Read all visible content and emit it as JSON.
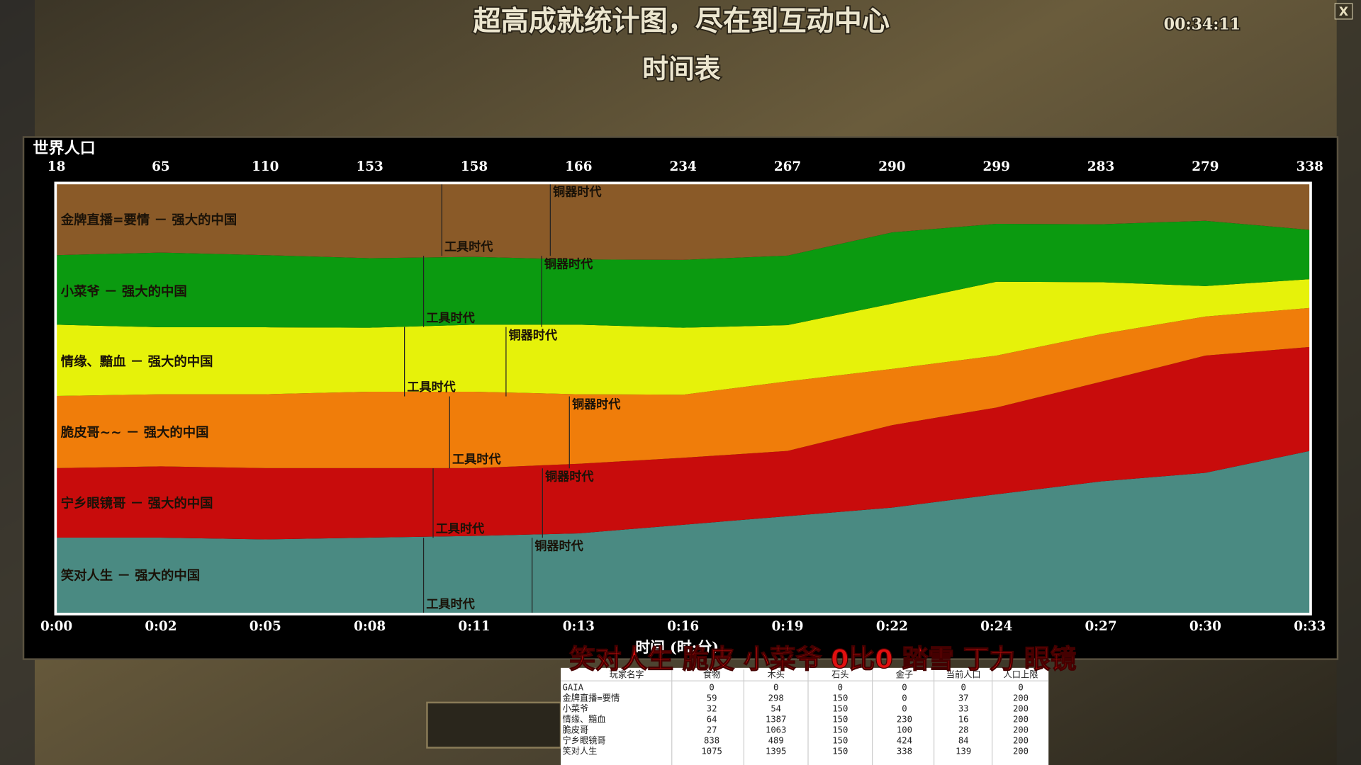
{
  "header": {
    "title": "超高成就统计图，尽在到互动中心",
    "subtitle": "时间表",
    "clock": "00:34:11",
    "close": "X"
  },
  "chart_data": {
    "type": "area",
    "stacked": true,
    "title": "世界人口",
    "xlabel": "时间 (时:分)",
    "categories": [
      "0:00",
      "0:02",
      "0:05",
      "0:08",
      "0:11",
      "0:13",
      "0:16",
      "0:19",
      "0:22",
      "0:24",
      "0:27",
      "0:30",
      "0:33"
    ],
    "population_totals": [
      18,
      65,
      110,
      153,
      158,
      166,
      234,
      267,
      290,
      299,
      283,
      279,
      338
    ],
    "ylim": [
      0,
      100
    ],
    "age_labels": {
      "tool": "工具时代",
      "bronze": "铜器时代"
    },
    "series": [
      {
        "name": "金牌直播=要情 － 强大的中国",
        "color": "#8a5a28",
        "values": [
          16.6,
          16.0,
          16.6,
          17.3,
          17.0,
          17.6,
          17.7,
          16.7,
          11.3,
          9.3,
          9.4,
          8.6,
          10.7
        ]
      },
      {
        "name": "小菜爷 － 强大的中国",
        "color": "#0b9a10",
        "values": [
          16.2,
          17.4,
          16.8,
          16.2,
          15.8,
          15.2,
          15.8,
          16.2,
          16.6,
          13.5,
          13.5,
          15.2,
          11.5
        ]
      },
      {
        "name": "情缘、黯血 － 强大的中国",
        "color": "#e6f20a",
        "values": [
          16.6,
          15.6,
          15.6,
          14.9,
          15.6,
          16.2,
          15.6,
          13.1,
          15.2,
          17.2,
          12.1,
          7.1,
          6.7
        ]
      },
      {
        "name": "脆皮哥~~ － 强大的中国",
        "color": "#f07d0a",
        "values": [
          16.8,
          16.8,
          17.2,
          17.8,
          17.8,
          16.2,
          14.7,
          16.2,
          13.1,
          12.1,
          11.1,
          9.1,
          9.1
        ]
      },
      {
        "name": "宁乡眼镜哥 － 强大的中国",
        "color": "#c80c0c",
        "values": [
          16.2,
          16.6,
          16.6,
          16.2,
          15.8,
          16.2,
          15.6,
          15.2,
          19.2,
          20.2,
          23.2,
          27.3,
          24.2
        ]
      },
      {
        "name": "笑对人生 － 强大的中国",
        "color": "#4a8a82",
        "values": [
          17.6,
          17.6,
          17.2,
          17.6,
          18.0,
          18.6,
          20.6,
          22.6,
          24.6,
          27.7,
          30.7,
          32.7,
          37.8
        ]
      }
    ]
  },
  "overlay": "笑对人生 脆皮 小菜爷 0比0 踏雪 丁力 眼镜",
  "table": {
    "headers": [
      "玩家名字",
      "食物",
      "木头",
      "石头",
      "金子",
      "当前人口",
      "人口上限"
    ],
    "rows": [
      [
        "GAIA",
        0,
        0,
        0,
        0,
        0,
        0
      ],
      [
        "金牌直播=要情",
        59,
        298,
        150,
        0,
        37,
        200
      ],
      [
        "小菜爷",
        32,
        54,
        150,
        0,
        33,
        200
      ],
      [
        "情缘、黯血",
        64,
        1387,
        150,
        230,
        16,
        200
      ],
      [
        "脆皮哥",
        27,
        1063,
        150,
        100,
        28,
        200
      ],
      [
        "宁乡眼镜哥",
        838,
        489,
        150,
        424,
        84,
        200
      ],
      [
        "笑对人生",
        1075,
        1395,
        150,
        338,
        139,
        200
      ]
    ]
  }
}
